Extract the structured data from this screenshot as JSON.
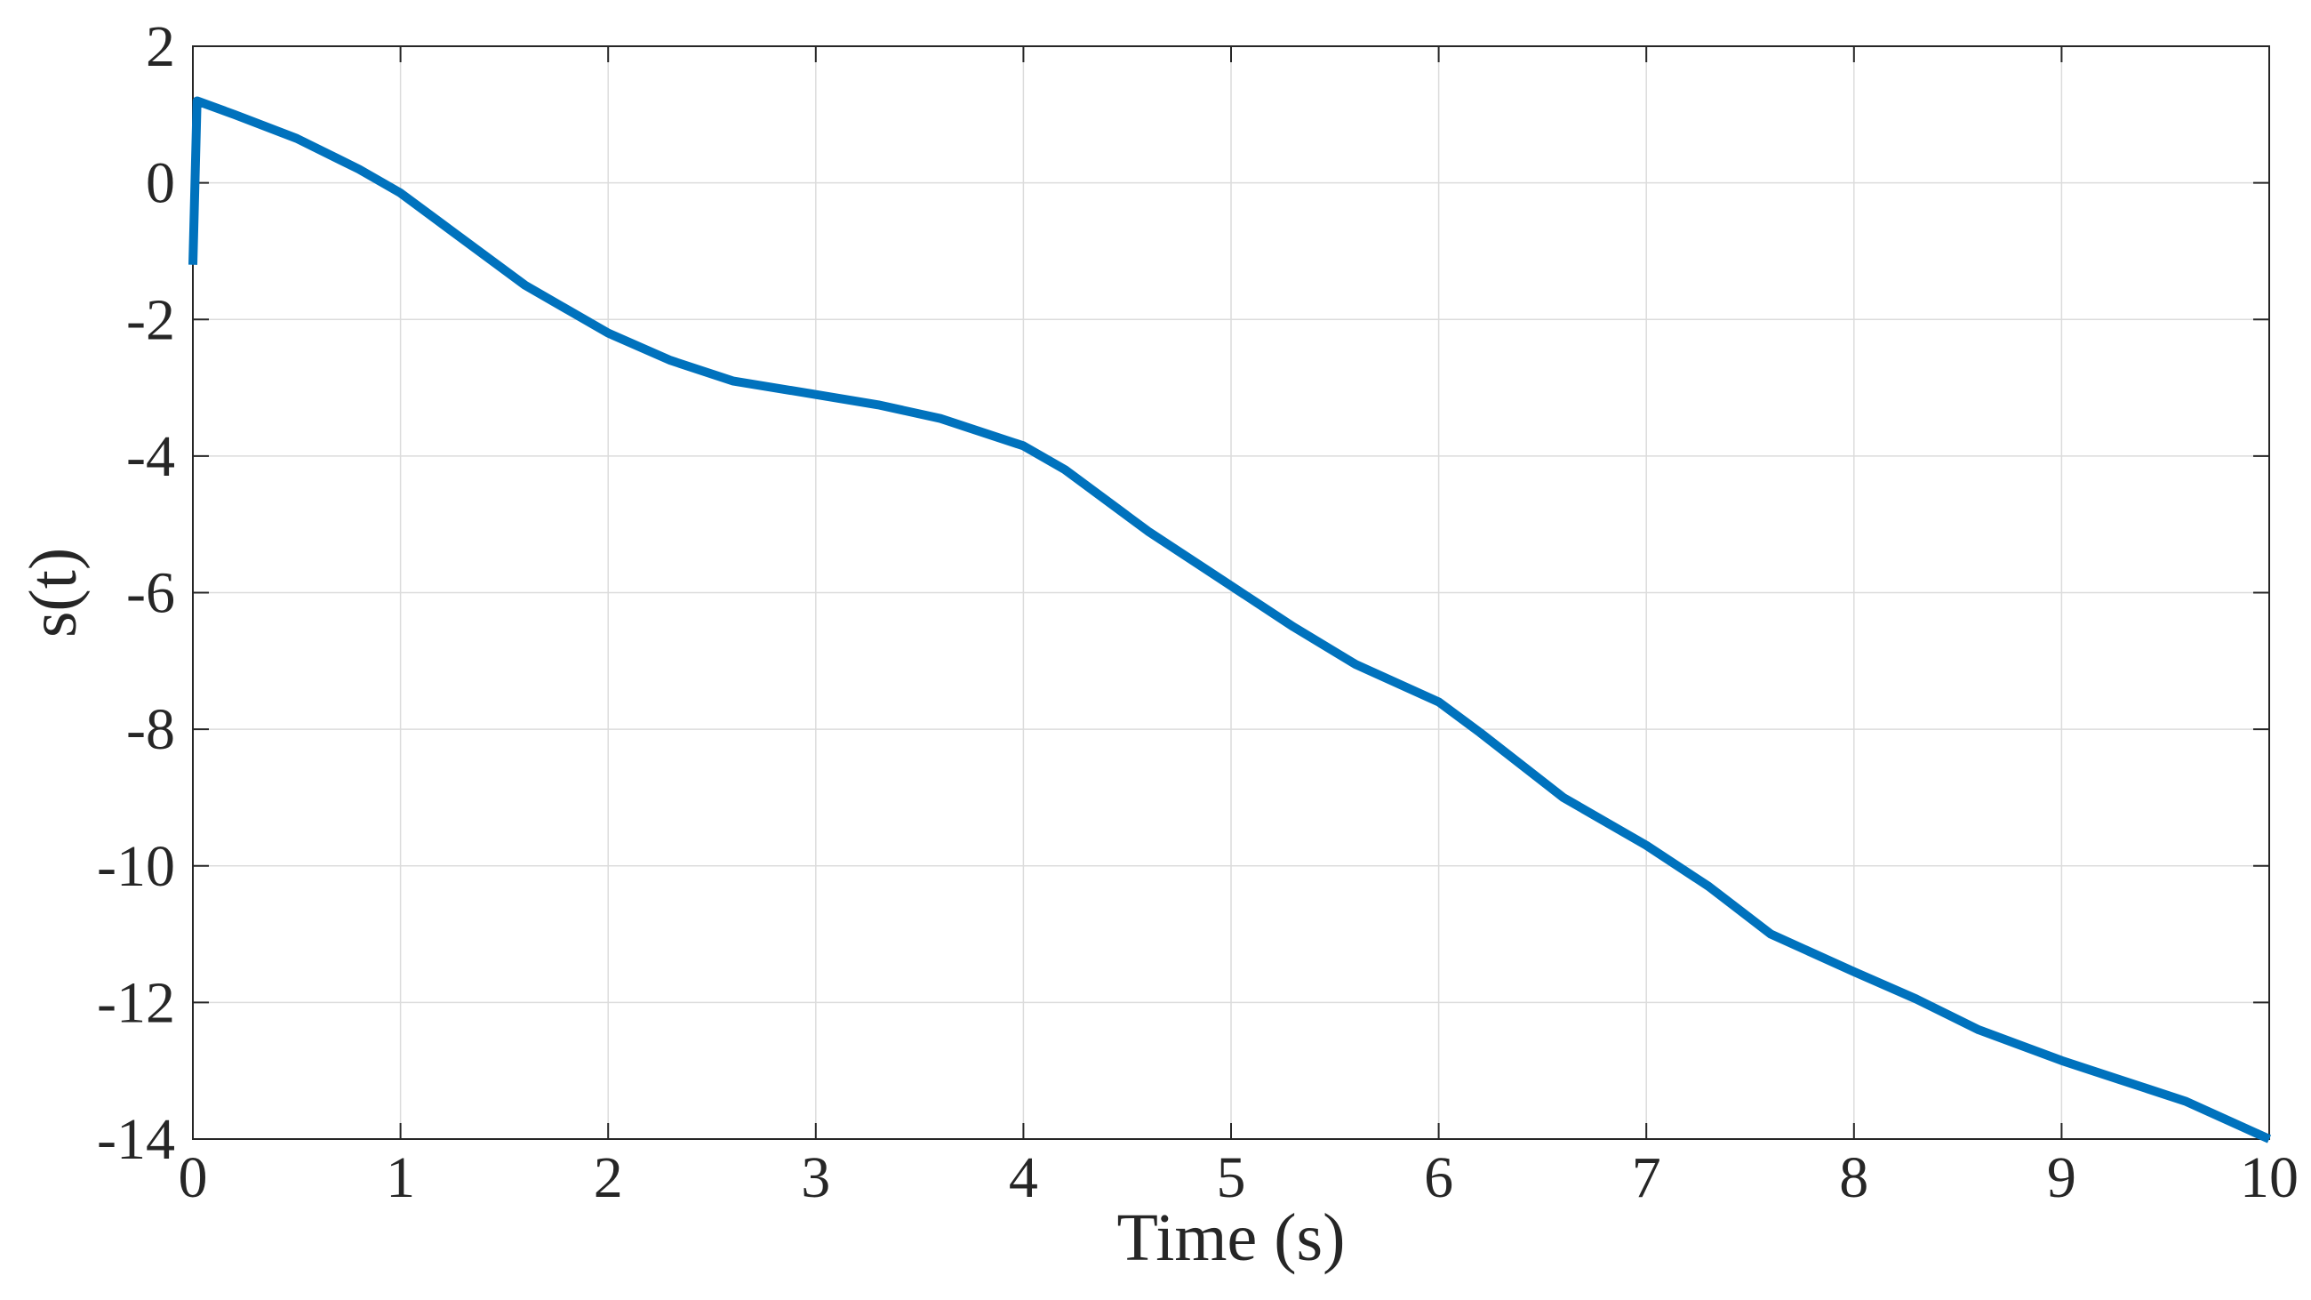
{
  "chart_data": {
    "type": "line",
    "xlabel": "Time (s)",
    "ylabel": "s(t)",
    "xlim": [
      0,
      10
    ],
    "ylim": [
      -14,
      2
    ],
    "xticks": [
      0,
      1,
      2,
      3,
      4,
      5,
      6,
      7,
      8,
      9,
      10
    ],
    "yticks": [
      2,
      0,
      -2,
      -4,
      -6,
      -8,
      -10,
      -12,
      -14
    ],
    "grid": true,
    "series": [
      {
        "color": "#0072BD",
        "x": [
          0,
          0.02,
          0.2,
          0.5,
          0.8,
          1.0,
          1.2,
          1.6,
          2.0,
          2.3,
          2.6,
          3.0,
          3.3,
          3.6,
          4.0,
          4.2,
          4.6,
          5.0,
          5.3,
          5.6,
          6.0,
          6.2,
          6.6,
          7.0,
          7.3,
          7.6,
          8.0,
          8.3,
          8.6,
          9.0,
          9.3,
          9.6,
          10.0
        ],
        "y": [
          -1.2,
          1.2,
          1.0,
          0.65,
          0.2,
          -0.15,
          -0.6,
          -1.5,
          -2.2,
          -2.6,
          -2.9,
          -3.1,
          -3.25,
          -3.45,
          -3.85,
          -4.2,
          -5.1,
          -5.9,
          -6.5,
          -7.05,
          -7.6,
          -8.05,
          -9.0,
          -9.7,
          -10.3,
          -11.0,
          -11.55,
          -11.95,
          -12.4,
          -12.85,
          -13.15,
          -13.45,
          -14.0
        ]
      }
    ]
  }
}
